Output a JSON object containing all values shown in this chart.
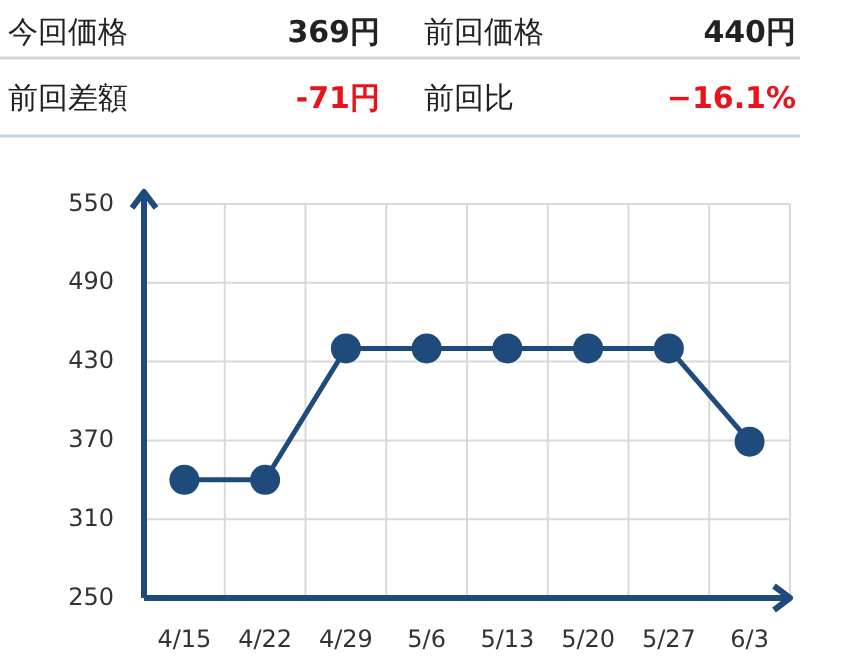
{
  "chart_data": {
    "type": "line",
    "annotations": [
      "今回価格",
      "369円",
      "前回価格",
      "440円",
      "前回差額",
      "-71円",
      "前回比",
      "−16.1%"
    ],
    "categories": [
      "4/15",
      "4/22",
      "4/29",
      "5/6",
      "5/13",
      "5/20",
      "5/27",
      "6/3"
    ],
    "series": [
      {
        "color": "#1f4a7c",
        "values": [
          340,
          340,
          440,
          440,
          440,
          440,
          440,
          369
        ]
      }
    ],
    "ylim": [
      250,
      550
    ],
    "yticks": [
      250,
      310,
      370,
      430,
      490,
      550
    ],
    "grid": true,
    "marker": "circle",
    "line_style": "solid"
  }
}
